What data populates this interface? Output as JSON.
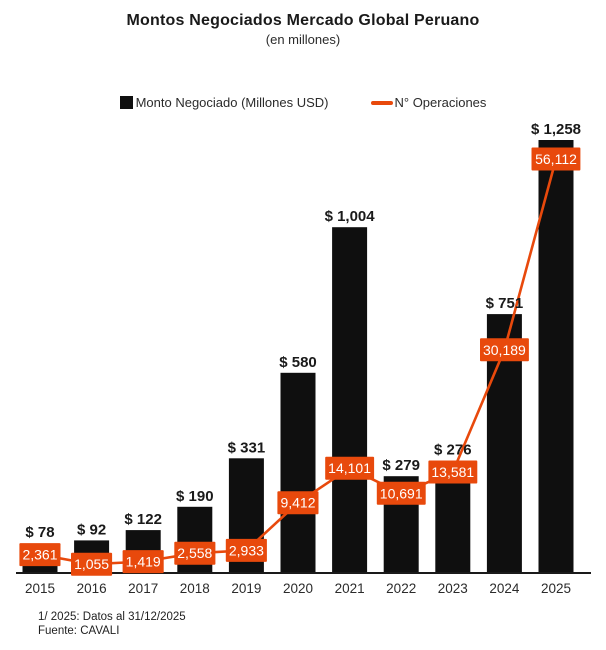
{
  "title": "Montos Negociados Mercado Global Peruano",
  "subtitle": "(en millones)",
  "legend": {
    "bar_label": "Monto Negociado (Millones USD)",
    "line_label": "N° Operaciones"
  },
  "footnote": {
    "line1": "1/ 2025: Datos al 31/12/2025",
    "line2": "Fuente:  CAVALI"
  },
  "colors": {
    "bar": "#0f0f0f",
    "line": "#e8490c",
    "label_bg": "#e8490c",
    "label_text": "#ffffff",
    "axis": "#1a1a1a",
    "text": "#1a1a1a",
    "tick_text": "#2b2b2b"
  },
  "chart_data": {
    "type": "bar",
    "subtype": "bar+line (dual axis)",
    "title": "Montos Negociados Mercado Global Peruano (en millones)",
    "categories": [
      "2015",
      "2016",
      "2017",
      "2018",
      "2019",
      "2020",
      "2021",
      "2022",
      "2023",
      "2024",
      "2025"
    ],
    "series": [
      {
        "name": "Monto Negociado (Millones USD)",
        "type": "bar",
        "values": [
          78,
          92,
          122,
          190,
          331,
          580,
          1004,
          279,
          276,
          751,
          1258
        ],
        "labels": [
          "$ 78",
          "$ 92",
          "$ 122",
          "$ 190",
          "$ 331",
          "$ 580",
          "$ 1,004",
          "$ 279",
          "$ 276",
          "$ 751",
          "$ 1,258"
        ]
      },
      {
        "name": "N° Operaciones",
        "type": "line",
        "values": [
          2361,
          1055,
          1419,
          2558,
          2933,
          9412,
          14101,
          10691,
          13581,
          30189,
          56112
        ],
        "labels": [
          "2,361",
          "1,055",
          "1,419",
          "2,558",
          "2,933",
          "9,412",
          "14,101",
          "10,691",
          "13,581",
          "30,189",
          "56,112"
        ]
      }
    ],
    "axes": {
      "x_label": "",
      "y_left_label": "",
      "y_left_max": 1258,
      "y_right_max": 56112,
      "gridlines": false,
      "y_axis_visible": false
    },
    "legend_position": "top-center"
  }
}
